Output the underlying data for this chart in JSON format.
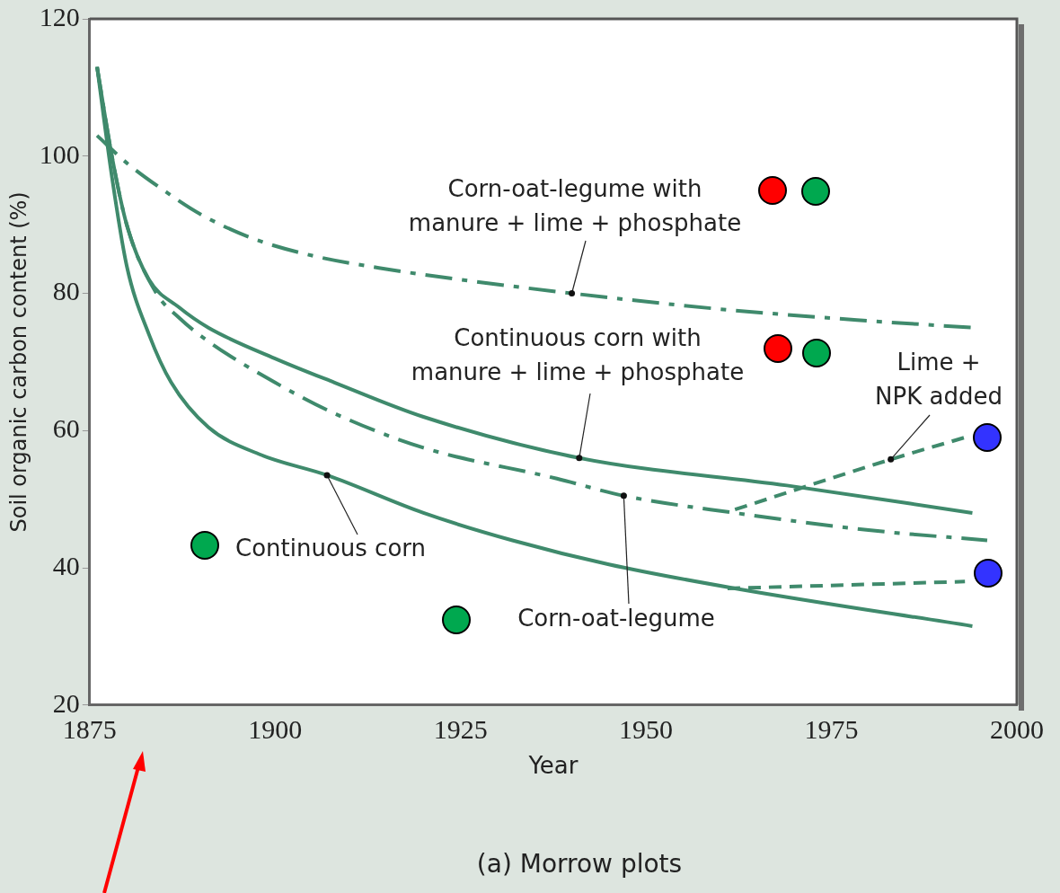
{
  "chart_data": {
    "type": "line",
    "title": "(a) Morrow plots",
    "xlabel": "Year",
    "ylabel": "Soil organic carbon content (%)",
    "xlim": [
      1875,
      2000
    ],
    "xticks": [
      1875,
      1900,
      1925,
      1950,
      1975,
      2000
    ],
    "ylim": [
      20,
      120
    ],
    "yticks": [
      20,
      40,
      60,
      80,
      100,
      120
    ],
    "grid": false,
    "legend": false,
    "marker": "none",
    "series": [
      {
        "color": "#3f8a6c",
        "line_style": "dashdot",
        "x": [
          1876,
          1880,
          1885,
          1890,
          1897,
          1905,
          1914,
          1925,
          1940,
          1960,
          1980,
          1994
        ],
        "values": [
          103,
          99,
          95,
          91.5,
          88,
          85.5,
          83.7,
          82,
          80,
          77.7,
          76,
          75
        ]
      },
      {
        "color": "#3f8a6c",
        "line_style": "solid",
        "x": [
          1876,
          1878,
          1880,
          1883,
          1887,
          1891,
          1900,
          1908,
          1920,
          1941,
          1969,
          1994
        ],
        "values": [
          113,
          100,
          90,
          82,
          78,
          75,
          70.5,
          67,
          62,
          56,
          52,
          48
        ]
      },
      {
        "color": "#3f8a6c",
        "line_style": "dashdot",
        "x": [
          1876,
          1878,
          1880,
          1884,
          1887,
          1891,
          1900,
          1908,
          1920,
          1938,
          1947,
          1962,
          1980,
          1996
        ],
        "values": [
          113,
          100,
          90,
          80,
          76.5,
          73,
          67,
          62.5,
          57.5,
          53,
          50.5,
          48,
          45.5,
          44
        ]
      },
      {
        "color": "#3f8a6c",
        "line_style": "solid",
        "x": [
          1876,
          1878,
          1880,
          1883,
          1886,
          1891,
          1898,
          1907,
          1920,
          1932,
          1945,
          1962,
          1994
        ],
        "values": [
          113,
          97,
          84,
          74,
          67,
          60.5,
          56.5,
          53.5,
          48,
          44,
          40.5,
          37,
          31.5
        ]
      },
      {
        "color": "#3f8a6c",
        "line_style": "dashed",
        "x": [
          1962,
          1983,
          1993
        ],
        "values": [
          48.5,
          55.8,
          59
        ]
      },
      {
        "color": "#3f8a6c",
        "line_style": "dashed",
        "x": [
          1961,
          1993
        ],
        "values": [
          37,
          38
        ]
      }
    ],
    "annotations": [
      {
        "text": "Corn-oat-legume with\nmanure + lime + phosphate",
        "x": 1940,
        "y": 80
      },
      {
        "text": "Continuous corn with\nmanure + lime + phosphate",
        "x": 1941,
        "y": 56
      },
      {
        "text": "Lime +\nNPK added",
        "x": 1983,
        "y": 55.8
      },
      {
        "text": "Continuous corn",
        "x": 1907,
        "y": 53.5
      },
      {
        "text": "Corn-oat-legume",
        "x": 1947,
        "y": 50.5
      }
    ]
  }
}
